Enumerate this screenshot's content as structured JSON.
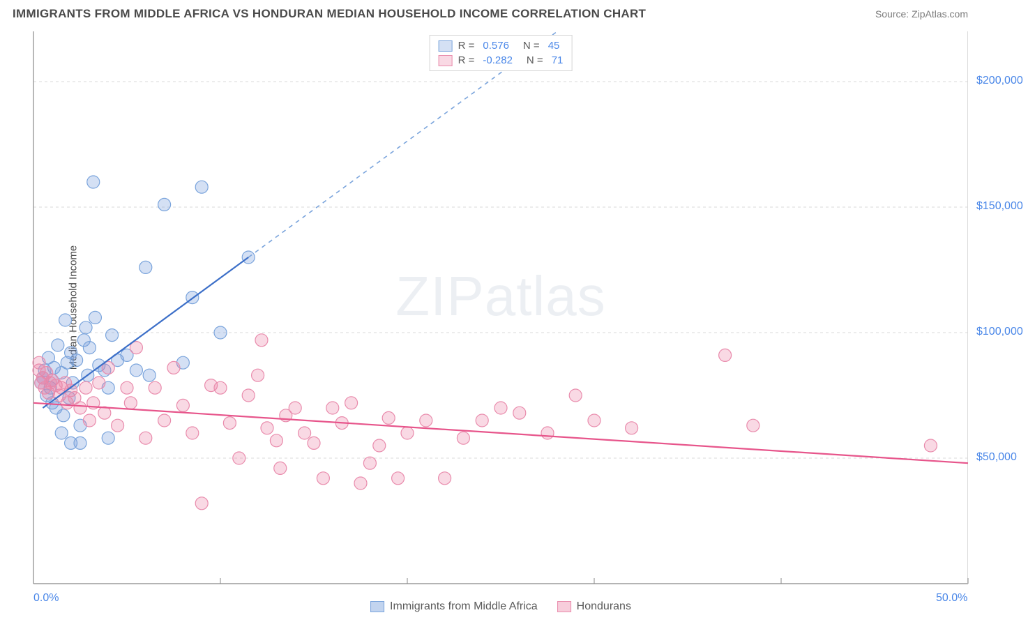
{
  "title": "IMMIGRANTS FROM MIDDLE AFRICA VS HONDURAN MEDIAN HOUSEHOLD INCOME CORRELATION CHART",
  "source": "Source: ZipAtlas.com",
  "watermark_zip": "ZIP",
  "watermark_atlas": "atlas",
  "chart": {
    "type": "scatter",
    "ylabel": "Median Household Income",
    "xlim": [
      0,
      50
    ],
    "ylim": [
      0,
      220000
    ],
    "x_ticks": [
      {
        "pos": 0,
        "label": "0.0%"
      },
      {
        "pos": 50,
        "label": "50.0%"
      }
    ],
    "x_minor_ticks": [
      10,
      20,
      30,
      40
    ],
    "y_ticks": [
      {
        "pos": 50000,
        "label": "$50,000"
      },
      {
        "pos": 100000,
        "label": "$100,000"
      },
      {
        "pos": 150000,
        "label": "$150,000"
      },
      {
        "pos": 200000,
        "label": "$200,000"
      }
    ],
    "background_color": "#ffffff",
    "grid_color": "#d9d9d9",
    "axis_color": "#888888",
    "series": [
      {
        "name": "Immigrants from Middle Africa",
        "fill": "rgba(120,160,220,0.32)",
        "stroke": "#7aa4dc",
        "line_color": "#3c6fc8",
        "trend_dash_color": "#7aa4dc",
        "r": "0.576",
        "n": "45",
        "marker_radius": 9,
        "trend": {
          "x1": 0.5,
          "y1": 70000,
          "x2": 11.5,
          "y2": 130000,
          "x2_dash": 35,
          "y2_dash": 258000
        },
        "points": [
          [
            0.5,
            82000
          ],
          [
            0.6,
            85000
          ],
          [
            0.7,
            75000
          ],
          [
            0.8,
            90000
          ],
          [
            0.9,
            78000
          ],
          [
            1.0,
            72000
          ],
          [
            1.1,
            86000
          ],
          [
            1.2,
            70000
          ],
          [
            1.3,
            95000
          ],
          [
            1.5,
            84000
          ],
          [
            1.6,
            67000
          ],
          [
            1.7,
            105000
          ],
          [
            1.8,
            88000
          ],
          [
            1.9,
            74000
          ],
          [
            2.0,
            92000
          ],
          [
            2.1,
            80000
          ],
          [
            2.3,
            89000
          ],
          [
            2.5,
            63000
          ],
          [
            2.7,
            97000
          ],
          [
            2.8,
            102000
          ],
          [
            2.9,
            83000
          ],
          [
            3.0,
            94000
          ],
          [
            3.2,
            160000
          ],
          [
            3.3,
            106000
          ],
          [
            3.5,
            87000
          ],
          [
            3.8,
            85000
          ],
          [
            4.0,
            78000
          ],
          [
            4.2,
            99000
          ],
          [
            4.5,
            89000
          ],
          [
            5.0,
            91000
          ],
          [
            5.5,
            85000
          ],
          [
            6.0,
            126000
          ],
          [
            6.2,
            83000
          ],
          [
            7.0,
            151000
          ],
          [
            8.0,
            88000
          ],
          [
            8.5,
            114000
          ],
          [
            9.0,
            158000
          ],
          [
            10.0,
            100000
          ],
          [
            11.5,
            130000
          ],
          [
            2.0,
            56000
          ],
          [
            1.5,
            60000
          ],
          [
            2.5,
            56000
          ],
          [
            4.0,
            58000
          ],
          [
            1.0,
            81000
          ],
          [
            0.4,
            80000
          ]
        ]
      },
      {
        "name": "Hondurans",
        "fill": "rgba(235,130,165,0.30)",
        "stroke": "#e98bac",
        "line_color": "#e7558b",
        "r": "-0.282",
        "n": "71",
        "marker_radius": 9,
        "trend": {
          "x1": 0,
          "y1": 72000,
          "x2": 50,
          "y2": 48000
        },
        "points": [
          [
            0.3,
            85000
          ],
          [
            0.4,
            80000
          ],
          [
            0.5,
            82000
          ],
          [
            0.6,
            78000
          ],
          [
            0.7,
            84000
          ],
          [
            0.8,
            76000
          ],
          [
            0.9,
            80000
          ],
          [
            1.0,
            81000
          ],
          [
            1.2,
            79000
          ],
          [
            1.4,
            75000
          ],
          [
            1.5,
            78000
          ],
          [
            1.7,
            80000
          ],
          [
            1.8,
            72000
          ],
          [
            2.0,
            77000
          ],
          [
            2.2,
            74000
          ],
          [
            2.5,
            70000
          ],
          [
            2.8,
            78000
          ],
          [
            3.0,
            65000
          ],
          [
            3.2,
            72000
          ],
          [
            3.5,
            80000
          ],
          [
            3.8,
            68000
          ],
          [
            4.0,
            86000
          ],
          [
            4.5,
            63000
          ],
          [
            5.0,
            78000
          ],
          [
            5.2,
            72000
          ],
          [
            5.5,
            94000
          ],
          [
            6.0,
            58000
          ],
          [
            6.5,
            78000
          ],
          [
            7.0,
            65000
          ],
          [
            7.5,
            86000
          ],
          [
            8.0,
            71000
          ],
          [
            8.5,
            60000
          ],
          [
            9.0,
            32000
          ],
          [
            9.5,
            79000
          ],
          [
            10.0,
            78000
          ],
          [
            10.5,
            64000
          ],
          [
            11.0,
            50000
          ],
          [
            11.5,
            75000
          ],
          [
            12.0,
            83000
          ],
          [
            12.2,
            97000
          ],
          [
            12.5,
            62000
          ],
          [
            13.0,
            57000
          ],
          [
            13.2,
            46000
          ],
          [
            13.5,
            67000
          ],
          [
            14.0,
            70000
          ],
          [
            14.5,
            60000
          ],
          [
            15.0,
            56000
          ],
          [
            15.5,
            42000
          ],
          [
            16.0,
            70000
          ],
          [
            16.5,
            64000
          ],
          [
            17.0,
            72000
          ],
          [
            17.5,
            40000
          ],
          [
            18.0,
            48000
          ],
          [
            18.5,
            55000
          ],
          [
            19.0,
            66000
          ],
          [
            19.5,
            42000
          ],
          [
            20.0,
            60000
          ],
          [
            21.0,
            65000
          ],
          [
            22.0,
            42000
          ],
          [
            23.0,
            58000
          ],
          [
            24.0,
            65000
          ],
          [
            25.0,
            70000
          ],
          [
            26.0,
            68000
          ],
          [
            27.5,
            60000
          ],
          [
            29.0,
            75000
          ],
          [
            30.0,
            65000
          ],
          [
            32.0,
            62000
          ],
          [
            37.0,
            91000
          ],
          [
            38.5,
            63000
          ],
          [
            48.0,
            55000
          ],
          [
            0.3,
            88000
          ]
        ]
      }
    ],
    "legend_top": {
      "r_label": "R =",
      "n_label": "N ="
    },
    "legend_bottom": [
      {
        "swatch_fill": "rgba(120,160,220,0.45)",
        "swatch_stroke": "#7aa4dc",
        "label": "Immigrants from Middle Africa"
      },
      {
        "swatch_fill": "rgba(235,130,165,0.40)",
        "swatch_stroke": "#e98bac",
        "label": "Hondurans"
      }
    ]
  }
}
